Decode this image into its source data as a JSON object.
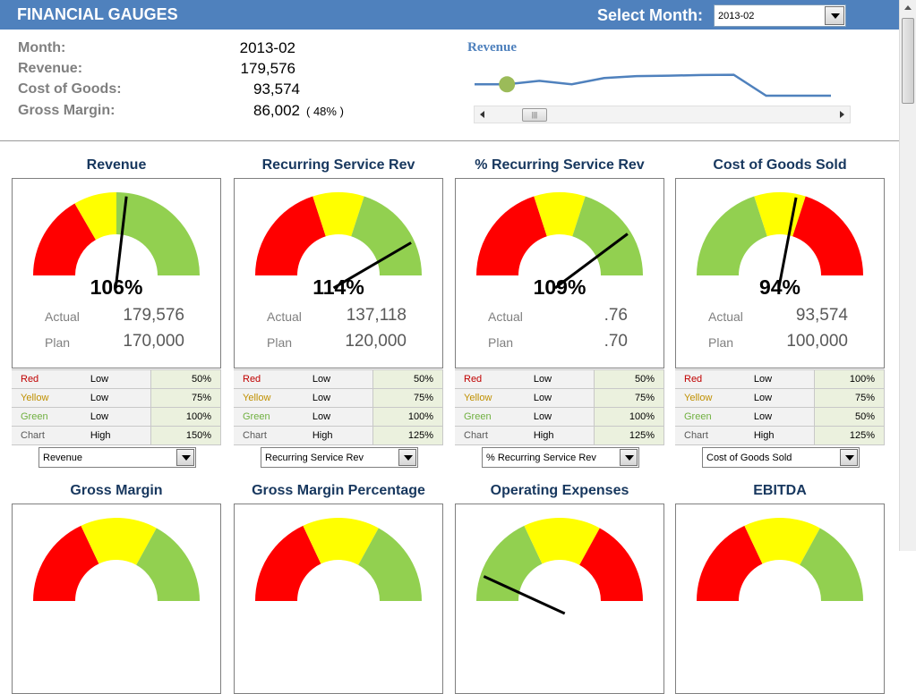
{
  "header": {
    "title": "FINANCIAL GAUGES",
    "select_label": "Select Month:",
    "selected_month": "2013-02"
  },
  "summary": [
    {
      "label": "Month:",
      "value": "2013-02"
    },
    {
      "label": "Revenue:",
      "value": "179,576"
    },
    {
      "label": "Cost of Goods:",
      "value": "93,574"
    },
    {
      "label": "Gross Margin:",
      "value": "86,002",
      "extra": "( 48% )"
    }
  ],
  "sparkline": {
    "title": "Revenue",
    "line_color": "#4f81bd",
    "marker_color": "#9bbb59",
    "selected_index": 1,
    "relative_values": [
      0.71,
      0.71,
      0.86,
      0.71,
      0.98,
      1.06,
      1.08,
      1.11,
      1.12,
      0.22,
      0.22,
      0.22
    ]
  },
  "colors": {
    "red": "#ff0000",
    "yellow": "#ffff00",
    "green": "#92d050",
    "needle": "#000000",
    "title": "#17375e"
  },
  "gauges": [
    {
      "title": "Revenue",
      "pct": "106%",
      "actual_label": "Actual",
      "plan_label": "Plan",
      "actual": "179,576",
      "plan": "170,000",
      "ranges": [
        [
          "Red",
          "Low",
          "50%"
        ],
        [
          "Yellow",
          "Low",
          "75%"
        ],
        [
          "Green",
          "Low",
          "100%"
        ],
        [
          "Chart",
          "High",
          "150%"
        ]
      ],
      "bands": [
        [
          "red",
          0,
          0.333
        ],
        [
          "yellow",
          0.333,
          0.5
        ],
        [
          "green",
          0.5,
          1
        ]
      ],
      "needle_fraction": 0.54,
      "selector": "Revenue"
    },
    {
      "title": "Recurring Service Rev",
      "pct": "114%",
      "actual_label": "Actual",
      "plan_label": "Plan",
      "actual": "137,118",
      "plan": "120,000",
      "ranges": [
        [
          "Red",
          "Low",
          "50%"
        ],
        [
          "Yellow",
          "Low",
          "75%"
        ],
        [
          "Green",
          "Low",
          "100%"
        ],
        [
          "Chart",
          "High",
          "125%"
        ]
      ],
      "bands": [
        [
          "red",
          0,
          0.4
        ],
        [
          "yellow",
          0.4,
          0.6
        ],
        [
          "green",
          0.6,
          1
        ]
      ],
      "needle_fraction": 0.865,
      "selector": "Recurring Service Rev"
    },
    {
      "title": "% Recurring Service Rev",
      "pct": "109%",
      "actual_label": "Actual",
      "plan_label": "Plan",
      "actual": ".76",
      "plan": ".70",
      "ranges": [
        [
          "Red",
          "Low",
          "50%"
        ],
        [
          "Yellow",
          "Low",
          "75%"
        ],
        [
          "Green",
          "Low",
          "100%"
        ],
        [
          "Chart",
          "High",
          "125%"
        ]
      ],
      "bands": [
        [
          "red",
          0,
          0.4
        ],
        [
          "yellow",
          0.4,
          0.6
        ],
        [
          "green",
          0.6,
          1
        ]
      ],
      "needle_fraction": 0.825,
      "selector": "% Recurring Service Rev"
    },
    {
      "title": "Cost of Goods Sold",
      "pct": "94%",
      "actual_label": "Actual",
      "plan_label": "Plan",
      "actual": "93,574",
      "plan": "100,000",
      "ranges": [
        [
          "Red",
          "Low",
          "100%"
        ],
        [
          "Yellow",
          "Low",
          "75%"
        ],
        [
          "Green",
          "Low",
          "50%"
        ],
        [
          "Chart",
          "High",
          "125%"
        ]
      ],
      "bands": [
        [
          "green",
          0,
          0.4
        ],
        [
          "yellow",
          0.4,
          0.6
        ],
        [
          "red",
          0.6,
          1
        ]
      ],
      "needle_fraction": 0.565,
      "selector": "Cost of Goods Sold"
    },
    {
      "title": "Gross Margin",
      "bands": [
        [
          "red",
          0,
          0.36
        ],
        [
          "yellow",
          0.36,
          0.66
        ],
        [
          "green",
          0.66,
          1
        ]
      ]
    },
    {
      "title": "Gross Margin Percentage",
      "bands": [
        [
          "red",
          0,
          0.36
        ],
        [
          "yellow",
          0.36,
          0.66
        ],
        [
          "green",
          0.66,
          1
        ]
      ]
    },
    {
      "title": "Operating Expenses",
      "bands": [
        [
          "green",
          0,
          0.36
        ],
        [
          "yellow",
          0.36,
          0.66
        ],
        [
          "red",
          0.66,
          1
        ]
      ],
      "needle_fraction": 0.1
    },
    {
      "title": "EBITDA",
      "bands": [
        [
          "red",
          0,
          0.36
        ],
        [
          "yellow",
          0.36,
          0.66
        ],
        [
          "green",
          0.66,
          1
        ]
      ]
    }
  ]
}
